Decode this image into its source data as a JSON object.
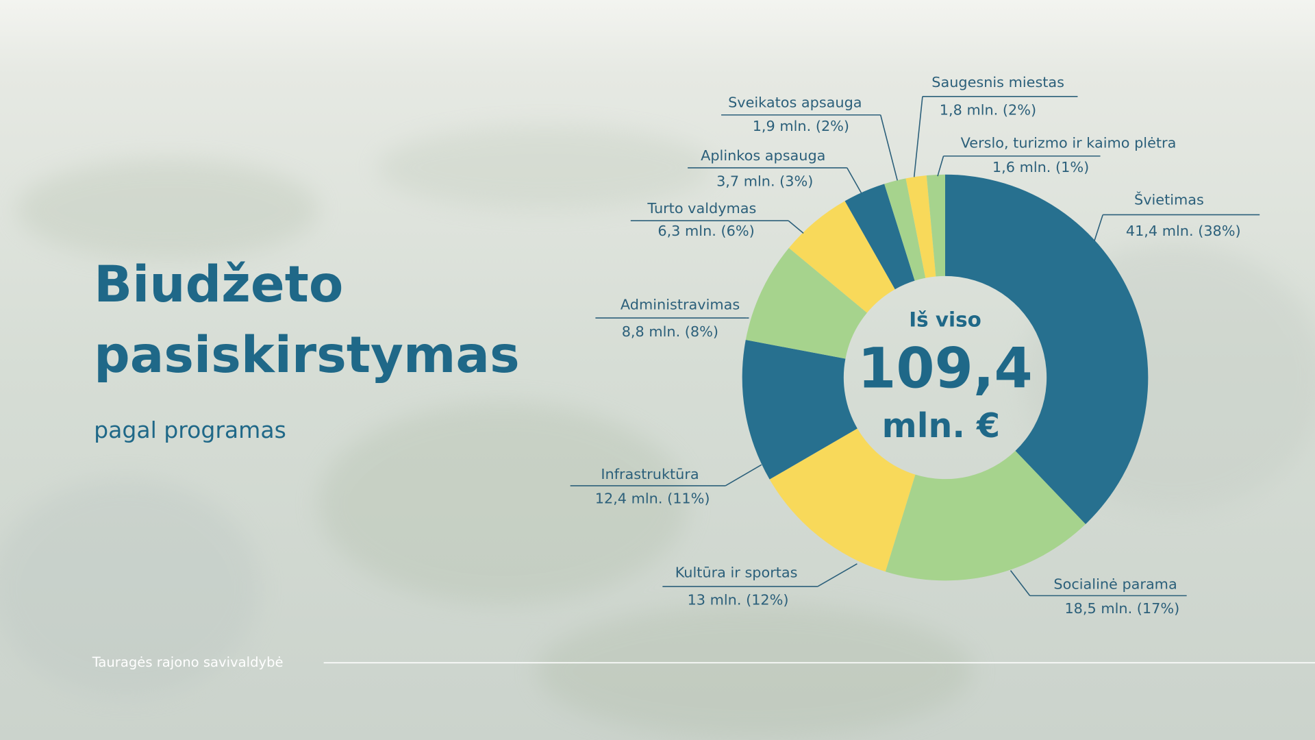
{
  "chart_data": {
    "type": "donut",
    "title_lines": [
      "Biudžeto",
      "pasiskirstymas"
    ],
    "subtitle": "pagal programas",
    "footer": "Tauragės rajono savivaldybė",
    "center_title": "Iš viso",
    "center_value": "109,4",
    "center_unit": "mln. €",
    "categories": [
      "Švietimas",
      "Socialinė parama",
      "Kultūra ir sportas",
      "Infrastruktūra",
      "Administravimas",
      "Turto valdymas",
      "Aplinkos apsauga",
      "Sveikatos apsauga",
      "Saugesnis miestas",
      "Verslo, turizmo ir kaimo plėtra"
    ],
    "values": [
      41.4,
      18.5,
      13,
      12.4,
      8.8,
      6.3,
      3.7,
      1.9,
      1.8,
      1.6
    ],
    "value_labels": [
      "41,4 mln. (38%)",
      "18,5 mln. (17%)",
      "13 mln. (12%)",
      "12,4 mln.  (11%)",
      "8,8 mln. (8%)",
      "6,3 mln. (6%)",
      "3,7 mln. (3%)",
      "1,9 mln. (2%)",
      "1,8 mln. (2%)",
      "1,6 mln. (1%)"
    ],
    "colors": [
      "#27708f",
      "#a6d38d",
      "#f8d95a",
      "#27708f",
      "#a6d38d",
      "#f8d95a",
      "#27708f",
      "#a6d38d",
      "#f8d95a",
      "#a6d38d"
    ]
  }
}
